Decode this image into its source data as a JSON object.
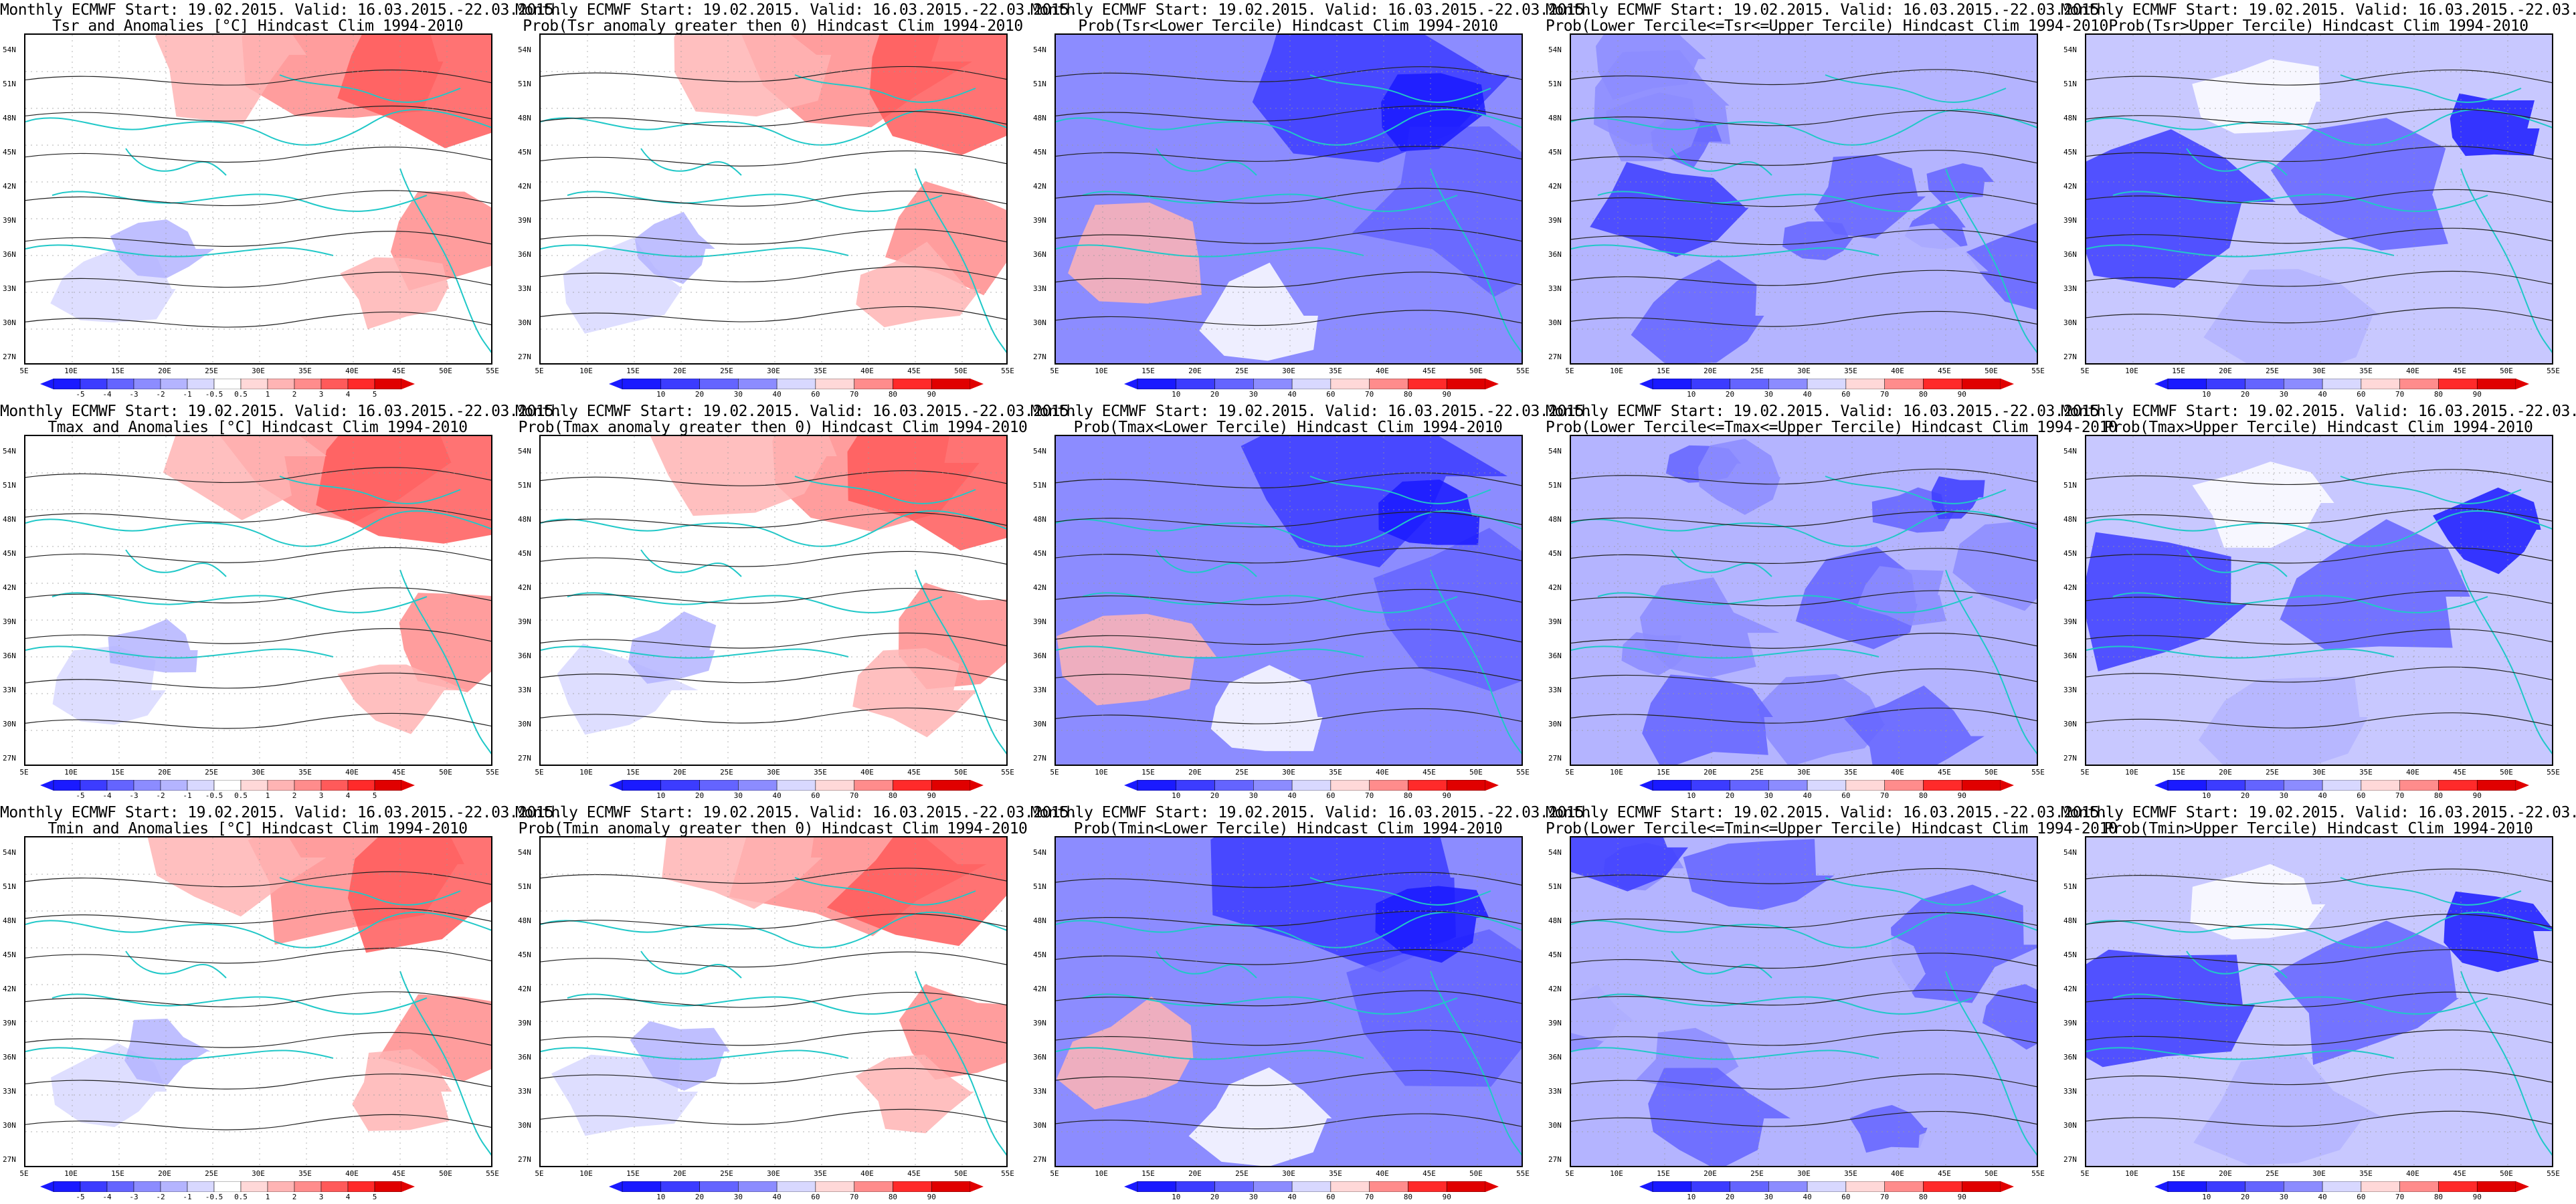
{
  "header_line1": "Monthly ECMWF Start: 19.02.2015. Valid: 16.03.2015.-22.03.2015.",
  "lat_labels": [
    "54N",
    "51N",
    "48N",
    "45N",
    "42N",
    "39N",
    "36N",
    "33N",
    "30N",
    "27N"
  ],
  "lon_labels": [
    "5E",
    "10E",
    "15E",
    "20E",
    "25E",
    "30E",
    "35E",
    "40E",
    "45E",
    "50E",
    "55E"
  ],
  "anom_levels": [
    "-5",
    "-4",
    "-3",
    "-2",
    "-1",
    "-0.5",
    "0.5",
    "1",
    "2",
    "3",
    "4",
    "5"
  ],
  "prob_levels": [
    "10",
    "20",
    "30",
    "40",
    "60",
    "70",
    "80",
    "90"
  ],
  "palette_diverging": [
    "#1a1aff",
    "#3c3cff",
    "#6464ff",
    "#8c8cff",
    "#b4b4ff",
    "#d8d8ff",
    "#ffffff",
    "#ffd8d8",
    "#ffb4b4",
    "#ff8c8c",
    "#ff5a5a",
    "#ff2a2a",
    "#e00000"
  ],
  "coast_color": "#20c8c8",
  "contour_color": "#222222",
  "panels": [
    {
      "title2": "Tsr and Anomalies [°C] Hindcast Clim 1994-2010",
      "kind": "anom",
      "row": 0,
      "col": 0
    },
    {
      "title2": "Prob(Tsr anomaly greater then 0) Hindcast Clim 1994-2010",
      "kind": "prob",
      "row": 0,
      "col": 1
    },
    {
      "title2": "Prob(Tsr<Lower Tercile) Hindcast Clim 1994-2010",
      "kind": "prob",
      "row": 0,
      "col": 2
    },
    {
      "title2": "Prob(Lower Tercile<=Tsr<=Upper Tercile) Hindcast Clim 1994-2010",
      "kind": "prob",
      "row": 0,
      "col": 3
    },
    {
      "title2": "Prob(Tsr>Upper Tercile) Hindcast Clim 1994-2010",
      "kind": "prob",
      "row": 0,
      "col": 4
    },
    {
      "title2": "Tmax and Anomalies [°C] Hindcast Clim 1994-2010",
      "kind": "anom",
      "row": 1,
      "col": 0
    },
    {
      "title2": "Prob(Tmax anomaly greater then 0) Hindcast Clim 1994-2010",
      "kind": "prob",
      "row": 1,
      "col": 1
    },
    {
      "title2": "Prob(Tmax<Lower Tercile) Hindcast Clim 1994-2010",
      "kind": "prob",
      "row": 1,
      "col": 2
    },
    {
      "title2": "Prob(Lower Tercile<=Tmax<=Upper Tercile) Hindcast Clim 1994-2010",
      "kind": "prob",
      "row": 1,
      "col": 3
    },
    {
      "title2": "Prob(Tmax>Upper Tercile) Hindcast Clim 1994-2010",
      "kind": "prob",
      "row": 1,
      "col": 4
    },
    {
      "title2": "Tmin and Anomalies [°C] Hindcast Clim 1994-2010",
      "kind": "anom",
      "row": 2,
      "col": 0
    },
    {
      "title2": "Prob(Tmin anomaly greater then 0) Hindcast Clim 1994-2010",
      "kind": "prob",
      "row": 2,
      "col": 1
    },
    {
      "title2": "Prob(Tmin<Lower Tercile) Hindcast Clim 1994-2010",
      "kind": "prob",
      "row": 2,
      "col": 2
    },
    {
      "title2": "Prob(Lower Tercile<=Tmin<=Upper Tercile) Hindcast Clim 1994-2010",
      "kind": "prob",
      "row": 2,
      "col": 3
    },
    {
      "title2": "Prob(Tmin>Upper Tercile) Hindcast Clim 1994-2010",
      "kind": "prob",
      "row": 2,
      "col": 4
    }
  ]
}
